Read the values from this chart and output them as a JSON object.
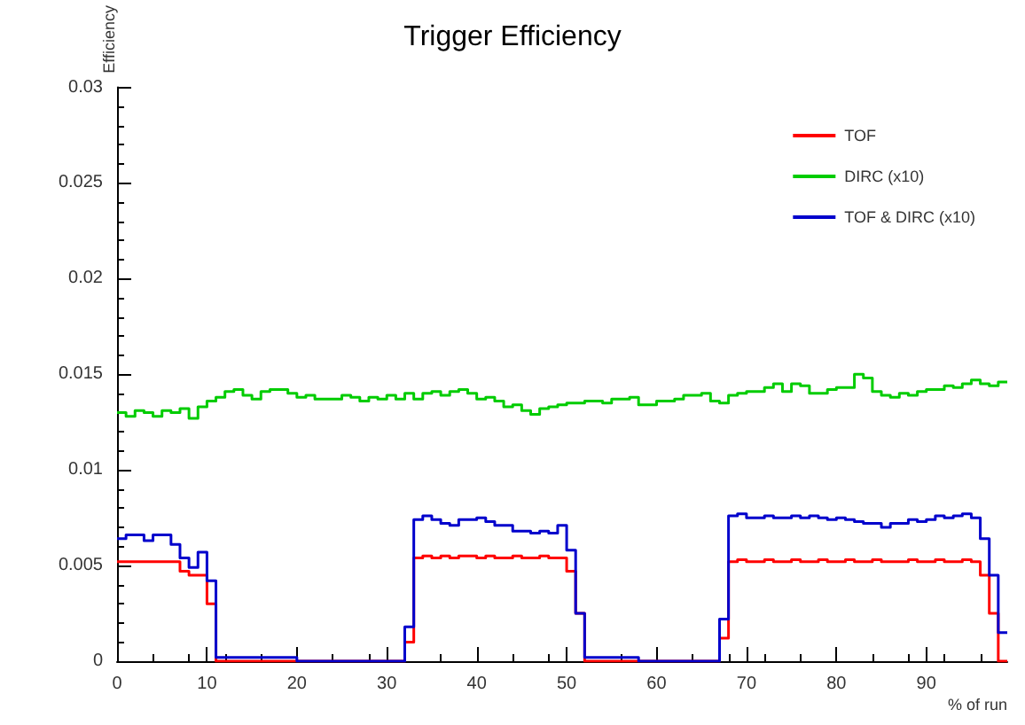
{
  "chart_data": {
    "type": "histogram",
    "title": "Trigger Efficiency",
    "xlabel": "% of run",
    "ylabel": "Efficiency",
    "bins": [
      0,
      1,
      2,
      3,
      4,
      5,
      6,
      7,
      8,
      9,
      10,
      11,
      12,
      13,
      14,
      15,
      16,
      17,
      18,
      19,
      20,
      21,
      22,
      23,
      24,
      25,
      26,
      27,
      28,
      29,
      30,
      31,
      32,
      33,
      34,
      35,
      36,
      37,
      38,
      39,
      40,
      41,
      42,
      43,
      44,
      45,
      46,
      47,
      48,
      49,
      50,
      51,
      52,
      53,
      54,
      55,
      56,
      57,
      58,
      59,
      60,
      61,
      62,
      63,
      64,
      65,
      66,
      67,
      68,
      69,
      70,
      71,
      72,
      73,
      74,
      75,
      76,
      77,
      78,
      79,
      80,
      81,
      82,
      83,
      84,
      85,
      86,
      87,
      88,
      89,
      90,
      91,
      92,
      93,
      94,
      95,
      96,
      97,
      98,
      99
    ],
    "series": [
      {
        "name": "TOF",
        "color": "#ff0000",
        "values": [
          0.0052,
          0.0052,
          0.0052,
          0.0052,
          0.0052,
          0.0052,
          0.0052,
          0.0047,
          0.0045,
          0.0045,
          0.003,
          0,
          0,
          0,
          0,
          0,
          0,
          0,
          0,
          0,
          0,
          0,
          0,
          0,
          0,
          0,
          0,
          0,
          0,
          0,
          0,
          0,
          0.001,
          0.0054,
          0.0055,
          0.0054,
          0.0055,
          0.0054,
          0.0055,
          0.0055,
          0.0054,
          0.0055,
          0.0054,
          0.0054,
          0.0055,
          0.0054,
          0.0054,
          0.0055,
          0.0054,
          0.0054,
          0.0047,
          0.0025,
          0,
          0,
          0,
          0,
          0,
          0,
          0,
          0,
          0,
          0,
          0,
          0,
          0,
          0,
          0,
          0.0012,
          0.0052,
          0.0053,
          0.0052,
          0.0052,
          0.0053,
          0.0052,
          0.0052,
          0.0053,
          0.0052,
          0.0052,
          0.0053,
          0.0052,
          0.0052,
          0.0053,
          0.0052,
          0.0052,
          0.0053,
          0.0052,
          0.0052,
          0.0052,
          0.0053,
          0.0052,
          0.0052,
          0.0053,
          0.0052,
          0.0052,
          0.0053,
          0.0052,
          0.0045,
          0.0025,
          0
        ]
      },
      {
        "name": "DIRC (x10)",
        "color": "#00cc00",
        "values": [
          0.013,
          0.0128,
          0.0131,
          0.013,
          0.0128,
          0.0131,
          0.013,
          0.0132,
          0.0127,
          0.0133,
          0.0136,
          0.0138,
          0.0141,
          0.0142,
          0.0139,
          0.0137,
          0.0141,
          0.0142,
          0.0142,
          0.014,
          0.0138,
          0.0139,
          0.0137,
          0.0137,
          0.0137,
          0.0139,
          0.0138,
          0.0136,
          0.0138,
          0.0137,
          0.0139,
          0.0137,
          0.014,
          0.0137,
          0.014,
          0.0141,
          0.0139,
          0.0141,
          0.0142,
          0.014,
          0.0137,
          0.0138,
          0.0136,
          0.0133,
          0.0134,
          0.0131,
          0.0129,
          0.0132,
          0.0133,
          0.0134,
          0.0135,
          0.0135,
          0.0136,
          0.0136,
          0.0135,
          0.0137,
          0.0137,
          0.0138,
          0.0134,
          0.0134,
          0.0136,
          0.0136,
          0.0137,
          0.0139,
          0.0139,
          0.014,
          0.0136,
          0.0135,
          0.0139,
          0.014,
          0.0141,
          0.0141,
          0.0143,
          0.0145,
          0.0141,
          0.0145,
          0.0144,
          0.014,
          0.014,
          0.0142,
          0.0143,
          0.0143,
          0.015,
          0.0148,
          0.0141,
          0.0139,
          0.0138,
          0.014,
          0.0139,
          0.0141,
          0.0142,
          0.0142,
          0.0144,
          0.0143,
          0.0145,
          0.0147,
          0.0145,
          0.0144,
          0.0146
        ]
      },
      {
        "name": "TOF & DIRC (x10)",
        "color": "#0000cc",
        "values": [
          0.0064,
          0.0066,
          0.0066,
          0.0063,
          0.0066,
          0.0066,
          0.0061,
          0.0054,
          0.0049,
          0.0057,
          0.0042,
          0.0002,
          0.0002,
          0.0002,
          0.0002,
          0.0002,
          0.0002,
          0.0002,
          0.0002,
          0.0002,
          0,
          0,
          0,
          0,
          0,
          0,
          0,
          0,
          0,
          0,
          0,
          0,
          0.0018,
          0.0074,
          0.0076,
          0.0074,
          0.0072,
          0.0071,
          0.0074,
          0.0074,
          0.0075,
          0.0073,
          0.0071,
          0.0071,
          0.0068,
          0.0068,
          0.0067,
          0.0068,
          0.0067,
          0.0071,
          0.0058,
          0.0025,
          0.0002,
          0.0002,
          0.0002,
          0.0002,
          0.0002,
          0.0002,
          0,
          0,
          0,
          0,
          0,
          0,
          0,
          0,
          0,
          0.0022,
          0.0076,
          0.0077,
          0.0075,
          0.0075,
          0.0076,
          0.0075,
          0.0075,
          0.0076,
          0.0075,
          0.0076,
          0.0075,
          0.0074,
          0.0075,
          0.0074,
          0.0073,
          0.0072,
          0.0072,
          0.007,
          0.0072,
          0.0072,
          0.0074,
          0.0073,
          0.0074,
          0.0076,
          0.0075,
          0.0076,
          0.0077,
          0.0075,
          0.0064,
          0.0045,
          0.0015
        ]
      }
    ],
    "xlim": [
      0,
      99
    ],
    "xticks": [
      0,
      10,
      20,
      30,
      40,
      50,
      60,
      70,
      80,
      90
    ],
    "ylim": [
      0,
      0.03
    ],
    "yticks": [
      0,
      0.005,
      0.01,
      0.015,
      0.02,
      0.025,
      0.03
    ],
    "grid": false,
    "legend": "top right"
  }
}
